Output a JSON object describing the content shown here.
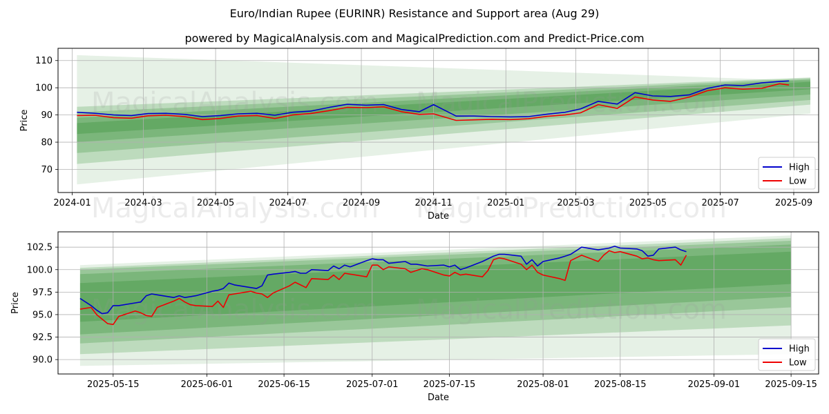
{
  "title": "Euro/Indian Rupee (EURINR) Resistance and Support area (Aug 29)",
  "subtitle": "powered by MagicalAnalysis.com and MagicalPrediction.com and Predict-Price.com",
  "watermark": [
    "MagicalAnalysis.com",
    "MagicalPrediction.com"
  ],
  "colors": {
    "high": "#0000cc",
    "low": "#ee0000",
    "band": "#2e8b2e",
    "grid": "#b0b0b0"
  },
  "chart_data": [
    {
      "type": "line",
      "xlabel": "Date",
      "ylabel": "Price",
      "xlim": [
        "2023-12-20",
        "2025-09-22"
      ],
      "ylim": [
        61.5,
        114.5
      ],
      "xticks": [
        "2024-01",
        "2024-03",
        "2024-05",
        "2024-07",
        "2024-09",
        "2024-11",
        "2025-01",
        "2025-03",
        "2025-05",
        "2025-07",
        "2025-09"
      ],
      "xtick_dates": [
        "2024-01-01",
        "2024-03-01",
        "2024-05-01",
        "2024-07-01",
        "2024-09-01",
        "2024-11-01",
        "2025-01-01",
        "2025-03-01",
        "2025-05-01",
        "2025-07-01",
        "2025-09-01"
      ],
      "yticks": [
        70,
        80,
        90,
        100,
        110
      ],
      "grid": true,
      "legend": "bottom-right",
      "series": [
        {
          "name": "High",
          "x": [
            "2024-01-05",
            "2024-01-20",
            "2024-02-05",
            "2024-02-20",
            "2024-03-05",
            "2024-03-20",
            "2024-04-05",
            "2024-04-20",
            "2024-05-05",
            "2024-05-20",
            "2024-06-05",
            "2024-06-20",
            "2024-07-05",
            "2024-07-20",
            "2024-08-05",
            "2024-08-20",
            "2024-09-05",
            "2024-09-20",
            "2024-10-05",
            "2024-10-20",
            "2024-11-01",
            "2024-11-20",
            "2024-12-05",
            "2024-12-20",
            "2025-01-05",
            "2025-01-20",
            "2025-02-05",
            "2025-02-20",
            "2025-03-05",
            "2025-03-20",
            "2025-04-05",
            "2025-04-20",
            "2025-05-05",
            "2025-05-20",
            "2025-06-05",
            "2025-06-20",
            "2025-07-05",
            "2025-07-20",
            "2025-08-05",
            "2025-08-20",
            "2025-08-28"
          ],
          "y": [
            91.0,
            90.6,
            90.0,
            89.8,
            90.5,
            90.6,
            90.2,
            89.4,
            89.8,
            90.4,
            90.6,
            89.9,
            91.0,
            91.4,
            92.8,
            93.9,
            93.6,
            93.8,
            92.0,
            91.2,
            93.8,
            89.6,
            89.6,
            89.4,
            89.3,
            89.4,
            90.3,
            91.0,
            92.2,
            95.0,
            94.0,
            98.2,
            97.0,
            96.8,
            97.4,
            99.8,
            101.0,
            100.8,
            101.8,
            102.3,
            102.5
          ]
        },
        {
          "name": "Low",
          "x": [
            "2024-01-05",
            "2024-01-20",
            "2024-02-05",
            "2024-02-20",
            "2024-03-05",
            "2024-03-20",
            "2024-04-05",
            "2024-04-20",
            "2024-05-05",
            "2024-05-20",
            "2024-06-05",
            "2024-06-20",
            "2024-07-05",
            "2024-07-20",
            "2024-08-05",
            "2024-08-20",
            "2024-09-05",
            "2024-09-20",
            "2024-10-05",
            "2024-10-20",
            "2024-11-01",
            "2024-11-20",
            "2024-12-05",
            "2024-12-20",
            "2025-01-05",
            "2025-01-20",
            "2025-02-05",
            "2025-02-20",
            "2025-03-05",
            "2025-03-20",
            "2025-04-05",
            "2025-04-20",
            "2025-05-05",
            "2025-05-20",
            "2025-06-05",
            "2025-06-20",
            "2025-07-05",
            "2025-07-20",
            "2025-08-05",
            "2025-08-20",
            "2025-08-28"
          ],
          "y": [
            89.8,
            89.9,
            89.0,
            88.8,
            89.7,
            89.9,
            89.4,
            88.3,
            88.7,
            89.6,
            89.8,
            88.7,
            90.0,
            90.5,
            91.6,
            92.8,
            92.7,
            93.0,
            91.2,
            90.2,
            90.4,
            88.0,
            88.2,
            88.4,
            88.3,
            88.6,
            89.5,
            90.0,
            90.8,
            93.8,
            92.4,
            96.6,
            95.5,
            95.0,
            96.6,
            98.9,
            100.0,
            99.5,
            99.8,
            101.5,
            101.0
          ]
        }
      ],
      "bands": [
        {
          "x": [
            "2024-01-05",
            "2025-09-15"
          ],
          "upper": [
            112.0,
            102.5
          ],
          "lower": [
            64.5,
            90.5
          ],
          "opacity": 0.12
        },
        {
          "x": [
            "2024-01-05",
            "2025-09-15"
          ],
          "upper": [
            93.0,
            103.8
          ],
          "lower": [
            72.0,
            93.8
          ],
          "opacity": 0.22
        },
        {
          "x": [
            "2024-01-05",
            "2025-09-15"
          ],
          "upper": [
            91.0,
            103.5
          ],
          "lower": [
            76.0,
            95.5
          ],
          "opacity": 0.25
        },
        {
          "x": [
            "2024-01-05",
            "2025-09-15"
          ],
          "upper": [
            89.0,
            103.0
          ],
          "lower": [
            80.0,
            97.5
          ],
          "opacity": 0.28
        },
        {
          "x": [
            "2024-01-05",
            "2025-09-15"
          ],
          "upper": [
            87.0,
            102.2
          ],
          "lower": [
            83.0,
            99.5
          ],
          "opacity": 0.3
        }
      ]
    },
    {
      "type": "line",
      "xlabel": "Date",
      "ylabel": "Price",
      "xlim": [
        "2025-05-05",
        "2025-09-20"
      ],
      "ylim": [
        88.4,
        104.2
      ],
      "xticks": [
        "2025-05-15",
        "2025-06-01",
        "2025-06-15",
        "2025-07-01",
        "2025-07-15",
        "2025-08-01",
        "2025-08-15",
        "2025-09-01",
        "2025-09-15"
      ],
      "yticks": [
        90.0,
        92.5,
        95.0,
        97.5,
        100.0,
        102.5
      ],
      "ytick_labels": [
        "90.0",
        "92.5",
        "95.0",
        "97.5",
        "100.0",
        "102.5"
      ],
      "grid": true,
      "legend": "bottom-right",
      "series": [
        {
          "name": "High",
          "x": [
            "2025-05-09",
            "2025-05-11",
            "2025-05-12",
            "2025-05-13",
            "2025-05-14",
            "2025-05-15",
            "2025-05-16",
            "2025-05-19",
            "2025-05-20",
            "2025-05-21",
            "2025-05-22",
            "2025-05-23",
            "2025-05-26",
            "2025-05-27",
            "2025-05-28",
            "2025-05-29",
            "2025-05-30",
            "2025-06-02",
            "2025-06-03",
            "2025-06-04",
            "2025-06-05",
            "2025-06-06",
            "2025-06-09",
            "2025-06-10",
            "2025-06-11",
            "2025-06-12",
            "2025-06-13",
            "2025-06-16",
            "2025-06-17",
            "2025-06-18",
            "2025-06-19",
            "2025-06-20",
            "2025-06-23",
            "2025-06-24",
            "2025-06-25",
            "2025-06-26",
            "2025-06-27",
            "2025-06-30",
            "2025-07-01",
            "2025-07-02",
            "2025-07-03",
            "2025-07-04",
            "2025-07-07",
            "2025-07-08",
            "2025-07-09",
            "2025-07-10",
            "2025-07-11",
            "2025-07-14",
            "2025-07-15",
            "2025-07-16",
            "2025-07-17",
            "2025-07-18",
            "2025-07-21",
            "2025-07-22",
            "2025-07-23",
            "2025-07-24",
            "2025-07-25",
            "2025-07-28",
            "2025-07-29",
            "2025-07-30",
            "2025-07-31",
            "2025-08-01",
            "2025-08-04",
            "2025-08-05",
            "2025-08-06",
            "2025-08-07",
            "2025-08-08",
            "2025-08-11",
            "2025-08-12",
            "2025-08-13",
            "2025-08-14",
            "2025-08-15",
            "2025-08-18",
            "2025-08-19",
            "2025-08-20",
            "2025-08-21",
            "2025-08-22",
            "2025-08-25",
            "2025-08-26",
            "2025-08-27"
          ],
          "y": [
            96.8,
            96.0,
            95.5,
            95.1,
            95.2,
            96.0,
            96.0,
            96.3,
            96.4,
            97.1,
            97.3,
            97.2,
            96.9,
            97.1,
            96.9,
            97.0,
            97.1,
            97.6,
            97.7,
            97.9,
            98.5,
            98.3,
            98.0,
            97.9,
            98.2,
            99.4,
            99.5,
            99.7,
            99.8,
            99.6,
            99.6,
            100.0,
            99.9,
            100.4,
            100.1,
            100.5,
            100.3,
            101.0,
            101.2,
            101.1,
            101.1,
            100.7,
            100.9,
            100.6,
            100.6,
            100.5,
            100.4,
            100.5,
            100.3,
            100.5,
            100.0,
            100.2,
            100.9,
            101.2,
            101.5,
            101.7,
            101.7,
            101.5,
            100.6,
            101.1,
            100.4,
            100.9,
            101.3,
            101.5,
            101.7,
            102.1,
            102.5,
            102.2,
            102.3,
            102.4,
            102.6,
            102.4,
            102.3,
            102.1,
            101.5,
            101.6,
            102.3,
            102.5,
            102.2,
            102.0
          ]
        },
        {
          "name": "Low",
          "x": [
            "2025-05-09",
            "2025-05-11",
            "2025-05-12",
            "2025-05-13",
            "2025-05-14",
            "2025-05-15",
            "2025-05-16",
            "2025-05-19",
            "2025-05-20",
            "2025-05-21",
            "2025-05-22",
            "2025-05-23",
            "2025-05-26",
            "2025-05-27",
            "2025-05-28",
            "2025-05-29",
            "2025-05-30",
            "2025-06-02",
            "2025-06-03",
            "2025-06-04",
            "2025-06-05",
            "2025-06-06",
            "2025-06-09",
            "2025-06-10",
            "2025-06-11",
            "2025-06-12",
            "2025-06-13",
            "2025-06-16",
            "2025-06-17",
            "2025-06-18",
            "2025-06-19",
            "2025-06-20",
            "2025-06-23",
            "2025-06-24",
            "2025-06-25",
            "2025-06-26",
            "2025-06-27",
            "2025-06-30",
            "2025-07-01",
            "2025-07-02",
            "2025-07-03",
            "2025-07-04",
            "2025-07-07",
            "2025-07-08",
            "2025-07-09",
            "2025-07-10",
            "2025-07-11",
            "2025-07-14",
            "2025-07-15",
            "2025-07-16",
            "2025-07-17",
            "2025-07-18",
            "2025-07-21",
            "2025-07-22",
            "2025-07-23",
            "2025-07-24",
            "2025-07-25",
            "2025-07-28",
            "2025-07-29",
            "2025-07-30",
            "2025-07-31",
            "2025-08-01",
            "2025-08-04",
            "2025-08-05",
            "2025-08-06",
            "2025-08-07",
            "2025-08-08",
            "2025-08-11",
            "2025-08-12",
            "2025-08-13",
            "2025-08-14",
            "2025-08-15",
            "2025-08-18",
            "2025-08-19",
            "2025-08-20",
            "2025-08-21",
            "2025-08-22",
            "2025-08-25",
            "2025-08-26",
            "2025-08-27"
          ],
          "y": [
            95.6,
            95.8,
            95.0,
            94.5,
            94.0,
            93.9,
            94.8,
            95.4,
            95.2,
            94.9,
            94.8,
            95.8,
            96.5,
            96.8,
            96.4,
            96.1,
            96.0,
            95.9,
            96.5,
            95.8,
            97.2,
            97.3,
            97.6,
            97.4,
            97.3,
            96.9,
            97.4,
            98.2,
            98.6,
            98.3,
            98.0,
            99.0,
            98.9,
            99.4,
            98.9,
            99.6,
            99.5,
            99.2,
            100.5,
            100.5,
            100.0,
            100.3,
            100.1,
            99.7,
            99.9,
            100.1,
            100.0,
            99.4,
            99.3,
            99.7,
            99.4,
            99.5,
            99.2,
            99.9,
            101.1,
            101.3,
            101.2,
            100.6,
            100.0,
            100.5,
            99.7,
            99.4,
            99.0,
            98.8,
            101.0,
            101.3,
            101.6,
            100.9,
            101.6,
            102.1,
            101.9,
            102.0,
            101.5,
            101.2,
            101.3,
            101.1,
            101.0,
            101.1,
            100.5,
            101.6
          ]
        }
      ],
      "bands": [
        {
          "x": [
            "2025-05-09",
            "2025-09-15"
          ],
          "upper": [
            100.5,
            103.8
          ],
          "lower": [
            89.3,
            90.6
          ],
          "opacity": 0.12
        },
        {
          "x": [
            "2025-05-09",
            "2025-09-15"
          ],
          "upper": [
            100.2,
            103.5
          ],
          "lower": [
            90.6,
            93.8
          ],
          "opacity": 0.22
        },
        {
          "x": [
            "2025-05-09",
            "2025-09-15"
          ],
          "upper": [
            100.0,
            103.2
          ],
          "lower": [
            91.8,
            95.8
          ],
          "opacity": 0.25
        },
        {
          "x": [
            "2025-05-09",
            "2025-09-15"
          ],
          "upper": [
            99.5,
            102.8
          ],
          "lower": [
            92.8,
            97.0
          ],
          "opacity": 0.28
        },
        {
          "x": [
            "2025-05-09",
            "2025-09-15"
          ],
          "upper": [
            98.5,
            102.0
          ],
          "lower": [
            94.2,
            98.4
          ],
          "opacity": 0.3
        }
      ]
    }
  ]
}
